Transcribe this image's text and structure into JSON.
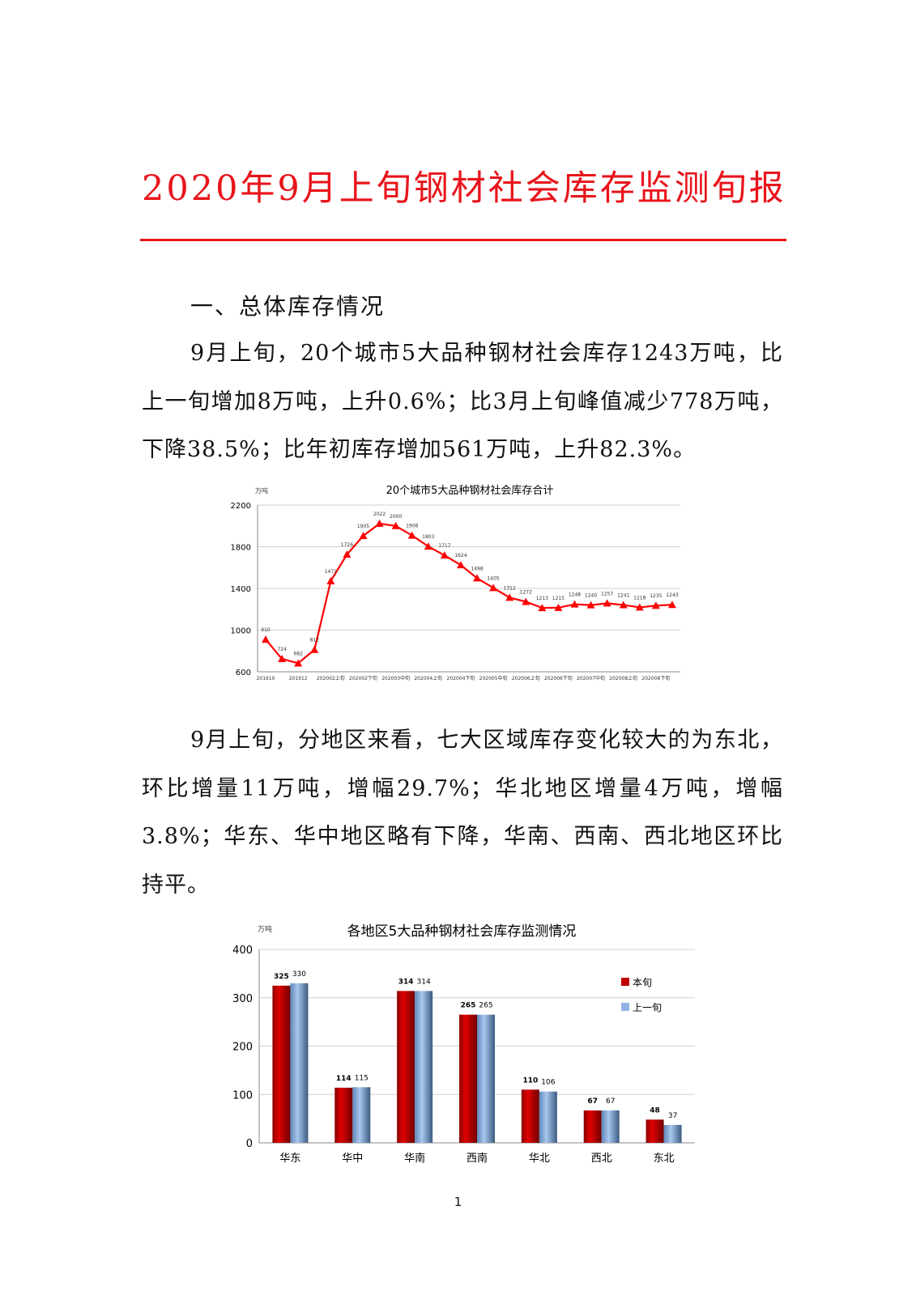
{
  "document": {
    "title": "2020年9月上旬钢材社会库存监测旬报",
    "section_heading": "一、总体库存情况",
    "paragraph_1": "9月上旬，20个城市5大品种钢材社会库存1243万吨，比上一旬增加8万吨，上升0.6%；比3月上旬峰值减少778万吨，下降38.5%；比年初库存增加561万吨，上升82.3%。",
    "paragraph_2": "9月上旬，分地区来看，七大区域库存变化较大的为东北，环比增量11万吨，增幅29.7%；华北地区增量4万吨，增幅3.8%；华东、华中地区略有下降，华南、西南、西北地区环比持平。",
    "page_number": "1",
    "accent_color": "#e8141b"
  },
  "chart_data": [
    {
      "type": "line",
      "title": "20个城市5大品种钢材社会库存合计",
      "ylabel": "万吨",
      "ylim": [
        600,
        2200
      ],
      "yticks": [
        "2200",
        "1800",
        "1400",
        "1000",
        "600"
      ],
      "ytick_values": [
        2200,
        1800,
        1400,
        1000,
        600
      ],
      "grid": true,
      "marker": "triangle",
      "color": "#ff0000",
      "x_tick_labels": [
        "201910",
        "201912",
        "202002上旬",
        "202002下旬",
        "202003中旬",
        "202004上旬",
        "202004下旬",
        "202005中旬",
        "202006上旬",
        "202006下旬",
        "202007中旬",
        "202008上旬",
        "202008下旬"
      ],
      "values": [
        910,
        724,
        682,
        812,
        1471,
        1726,
        1905,
        2022,
        2000,
        1908,
        1803,
        1717,
        1624,
        1498,
        1405,
        1312,
        1272,
        1213,
        1215,
        1248,
        1240,
        1257,
        1241,
        1218,
        1235,
        1243
      ],
      "data_labels": [
        "910",
        "724",
        "682",
        "812",
        "1471",
        "1726",
        "1905",
        "2022",
        "2000",
        "1908",
        "1803",
        "1717",
        "1624",
        "1498",
        "1405",
        "1312",
        "1272",
        "1213",
        "1215",
        "1248",
        "1240",
        "1257",
        "1241",
        "1218",
        "1235",
        "1243"
      ]
    },
    {
      "type": "bar",
      "title": "各地区5大品种钢材社会库存监测情况",
      "ylabel": "万吨",
      "ylim": [
        0,
        400
      ],
      "yticks": [
        "400",
        "300",
        "200",
        "100",
        "0"
      ],
      "ytick_values": [
        400,
        300,
        200,
        100,
        0
      ],
      "grid": true,
      "legend_position": "right",
      "categories": [
        "华东",
        "华中",
        "华南",
        "西南",
        "华北",
        "西北",
        "东北"
      ],
      "series": [
        {
          "name": "本旬",
          "color": "#c00000",
          "values": [
            325,
            114,
            314,
            265,
            110,
            67,
            48
          ],
          "labels": [
            "325",
            "114",
            "314",
            "265",
            "110",
            "67",
            "48"
          ]
        },
        {
          "name": "上一旬",
          "color": "#8db4e2",
          "values": [
            330,
            115,
            314,
            265,
            106,
            67,
            37
          ],
          "labels": [
            "330",
            "115",
            "314",
            "265",
            "106",
            "67",
            "37"
          ]
        }
      ]
    }
  ]
}
